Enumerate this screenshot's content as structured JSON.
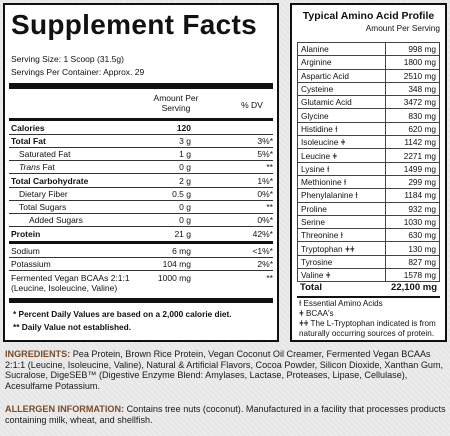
{
  "supplement_facts": {
    "title": "Supplement Facts",
    "serving_size": "Serving Size: 1 Scoop (31.5g)",
    "servings_per_container": "Servings Per Container: Approx. 29",
    "col_amount_line1": "Amount Per",
    "col_amount_line2": "Serving",
    "col_dv": "% DV",
    "rows": [
      {
        "name": "Calories",
        "amount": "120",
        "dv": ""
      },
      {
        "name": "Total Fat",
        "amount": "3 g",
        "dv": "3%*"
      },
      {
        "name": "Saturated Fat",
        "amount": "1 g",
        "dv": "5%*"
      },
      {
        "name": "Trans",
        "name_suffix": " Fat",
        "amount": "0 g",
        "dv": "**"
      },
      {
        "name": "Total Carbohydrate",
        "amount": "2 g",
        "dv": "1%*"
      },
      {
        "name": "Dietary Fiber",
        "amount": "0.5 g",
        "dv": "0%*"
      },
      {
        "name": "Total Sugars",
        "amount": "0 g",
        "dv": "**"
      },
      {
        "name": "Added Sugars",
        "amount": "0 g",
        "dv": "0%*"
      },
      {
        "name": "Protein",
        "amount": "21 g",
        "dv": "42%*"
      },
      {
        "name": "Sodium",
        "amount": "6 mg",
        "dv": "<1%*"
      },
      {
        "name": "Potassium",
        "amount": "104 mg",
        "dv": "2%*"
      },
      {
        "name": "Fermented Vegan BCAAs 2:1:1",
        "name_line2": "(Leucine, Isoleucine, Valine)",
        "amount": "1000 mg",
        "dv": "**"
      }
    ],
    "footnote1": "* Percent Daily Values are based on a 2,000 calorie diet.",
    "footnote2": "** Daily Value not established."
  },
  "amino_profile": {
    "title": "Typical Amino Acid Profile",
    "subtitle": "Amount Per Serving",
    "rows": [
      {
        "name": "Alanine",
        "value": "998 mg"
      },
      {
        "name": "Arginine",
        "value": "1800 mg"
      },
      {
        "name": "Aspartic Acid",
        "value": "2510 mg"
      },
      {
        "name": "Cysteine",
        "value": "348 mg"
      },
      {
        "name": "Glutamic Acid",
        "value": "3472 mg"
      },
      {
        "name": "Glycine",
        "value": "830 mg"
      },
      {
        "name": "Histidine Ɨ",
        "value": "620 mg"
      },
      {
        "name": "Isoleucine ǂ",
        "value": "1142 mg"
      },
      {
        "name": "Leucine ǂ",
        "value": "2271 mg"
      },
      {
        "name": "Lysine Ɨ",
        "value": "1499 mg"
      },
      {
        "name": "Methionine Ɨ",
        "value": "299 mg"
      },
      {
        "name": "Phenylalanine Ɨ",
        "value": "1184 mg"
      },
      {
        "name": "Proline",
        "value": "932 mg"
      },
      {
        "name": "Serine",
        "value": "1030 mg"
      },
      {
        "name": "Threonine Ɨ",
        "value": "630 mg"
      },
      {
        "name": "Tryptophan ǂǂ",
        "value": "130 mg"
      },
      {
        "name": "Tyrosine",
        "value": "827 mg"
      },
      {
        "name": "Valine ǂ",
        "value": "1578 mg"
      }
    ],
    "total_label": "Total",
    "total_value": "22,100 mg",
    "note1": "Ɨ Essential Amino Acids",
    "note2": "ǂ BCAA's",
    "note3": "ǂǂ The L-Tryptophan indicated is from naturally occurring sources of protein."
  },
  "ingredients": {
    "label": "INGREDIENTS:",
    "text": " Pea Protein, Brown Rice Protein, Vegan Coconut Oil Creamer, Fermented Vegan BCAAs 2:1:1 (Leucine, Isoleucine, Valine), Natural & Artificial Flavors, Cocoa Powder, Silicon Dioxide, Xanthan Gum, Sucralose, DigeSEB™ (Digestive Enzyme Blend: Amylases, Lactase, Proteases, Lipase, Cellulase), Acesulfame Potassium."
  },
  "allergen": {
    "label": "ALLERGEN INFORMATION:",
    "text": " Contains tree nuts (coconut). Manufactured in a facility that processes products containing milk, wheat, and shellfish."
  },
  "colors": {
    "label_brown": "#7a4a26",
    "panel_border": "#111111",
    "background": "#ebebeb"
  }
}
